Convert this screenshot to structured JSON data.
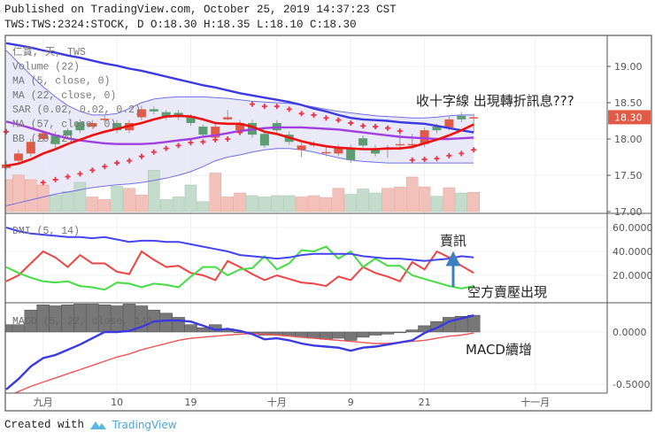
{
  "header": {
    "published": "Published on TradingView.com, October 25, 2019 14:37:23 CST",
    "symbol_line": "TWS:TWS:2324:STOCK, D O:18.30 H:18.35 L:18.10 C:18.30"
  },
  "footer": {
    "created_with": "Created with",
    "brand": "TradingView",
    "brand_icon": "tradingview-logo-icon"
  },
  "colors": {
    "up": "#e05a45",
    "down": "#5a9e72",
    "ma5": "#ee1111",
    "ma22": "#a040e0",
    "ma57": "#3a3ae0",
    "bb": "#7070e8",
    "sar": "#ee3344",
    "dmi_plus": "#ee4444",
    "dmi_minus": "#44dd44",
    "adx": "#4444ee",
    "macd": "#3a3ae0",
    "signal": "#ee5555",
    "hist": "#777777",
    "last_price_bg": "#e05a45"
  },
  "chart_data": [
    {
      "type": "candlestick",
      "pane": "price",
      "legend": [
        "仁寶, 天, TWS",
        "Volume (22)",
        "MA (5, close, 0)",
        "MA (22, close, 0)",
        "SAR (0.02, 0.02, 0.2)",
        "MA (57, close, 0)",
        "BB (20, 2)"
      ],
      "yticks": [
        "19.00",
        "18.50",
        "18.00",
        "17.50",
        "17.00"
      ],
      "ylim": [
        16.98,
        19.4
      ],
      "last_price": "18.30",
      "x_ticks": [
        {
          "x": 3,
          "label": "九月"
        },
        {
          "x": 9,
          "label": "10"
        },
        {
          "x": 15,
          "label": "19"
        },
        {
          "x": 22,
          "label": "十月"
        },
        {
          "x": 28,
          "label": "9"
        },
        {
          "x": 34,
          "label": "21"
        },
        {
          "x": 43,
          "label": "十一月"
        }
      ],
      "open": [
        17.6,
        17.7,
        17.8,
        18.0,
        18.06,
        18.12,
        18.23,
        18.17,
        18.28,
        18.22,
        18.12,
        18.3,
        18.41,
        18.37,
        18.36,
        18.3,
        18.17,
        18.02,
        18.27,
        18.12,
        18.22,
        18.07,
        18.22,
        18.06,
        17.85,
        17.93,
        17.82,
        17.8,
        17.87,
        18.01,
        17.87,
        17.87,
        17.93,
        17.93,
        17.93,
        18.17,
        18.16,
        18.32,
        18.3
      ],
      "close": [
        17.65,
        17.8,
        17.96,
        18.08,
        17.93,
        18.05,
        18.12,
        18.22,
        18.28,
        18.12,
        18.22,
        18.41,
        18.38,
        18.3,
        18.3,
        18.22,
        18.06,
        18.17,
        18.3,
        18.22,
        18.06,
        17.91,
        18.12,
        17.96,
        17.91,
        17.93,
        17.82,
        17.87,
        17.71,
        17.91,
        17.8,
        17.87,
        17.93,
        17.93,
        18.12,
        18.12,
        18.27,
        18.27,
        18.3
      ],
      "high": [
        17.7,
        17.85,
        18.0,
        18.12,
        18.1,
        18.15,
        18.27,
        18.26,
        18.32,
        18.26,
        18.26,
        18.46,
        18.45,
        18.4,
        18.4,
        18.34,
        18.2,
        18.21,
        18.4,
        18.26,
        18.26,
        18.1,
        18.26,
        18.1,
        17.95,
        17.97,
        17.9,
        17.92,
        17.92,
        18.05,
        17.92,
        17.92,
        18.07,
        18.07,
        18.16,
        18.21,
        18.31,
        18.37,
        18.35
      ],
      "low": [
        17.58,
        17.66,
        17.76,
        17.96,
        17.88,
        18.0,
        18.08,
        18.14,
        18.24,
        18.08,
        18.08,
        18.26,
        18.34,
        18.26,
        18.26,
        18.18,
        18.02,
        17.98,
        18.26,
        18.08,
        18.02,
        17.88,
        18.08,
        17.92,
        17.75,
        17.89,
        17.76,
        17.76,
        17.67,
        17.87,
        17.76,
        17.74,
        17.85,
        17.86,
        17.89,
        18.08,
        18.12,
        18.23,
        18.1
      ],
      "volume": [
        48,
        55,
        48,
        40,
        25,
        30,
        44,
        22,
        18,
        38,
        35,
        25,
        62,
        18,
        22,
        40,
        15,
        58,
        22,
        28,
        24,
        22,
        24,
        24,
        22,
        24,
        21,
        35,
        26,
        34,
        28,
        35,
        37,
        52,
        37,
        23,
        36,
        28,
        29
      ],
      "ma5": [
        17.63,
        17.66,
        17.72,
        17.8,
        17.86,
        17.93,
        17.99,
        18.05,
        18.1,
        18.14,
        18.18,
        18.22,
        18.27,
        18.31,
        18.32,
        18.31,
        18.27,
        18.22,
        18.21,
        18.21,
        18.17,
        18.1,
        18.07,
        18.02,
        17.97,
        17.93,
        17.9,
        17.88,
        17.87,
        17.86,
        17.86,
        17.87,
        17.87,
        17.89,
        17.94,
        17.99,
        18.05,
        18.12,
        18.2
      ],
      "ma22": [
        18.24,
        18.2,
        18.15,
        18.1,
        18.05,
        18.01,
        17.98,
        17.96,
        17.94,
        17.93,
        17.93,
        17.93,
        17.94,
        17.96,
        17.98,
        18.0,
        18.03,
        18.05,
        18.08,
        18.11,
        18.13,
        18.15,
        18.16,
        18.16,
        18.16,
        18.15,
        18.14,
        18.13,
        18.11,
        18.09,
        18.07,
        18.05,
        18.03,
        18.02,
        18.01,
        18.0,
        18.0,
        18.01,
        18.02
      ],
      "ma57": [
        19.32,
        19.29,
        19.26,
        19.22,
        19.19,
        19.15,
        19.12,
        19.08,
        19.04,
        19.01,
        18.97,
        18.94,
        18.9,
        18.86,
        18.82,
        18.78,
        18.74,
        18.71,
        18.67,
        18.63,
        18.6,
        18.57,
        18.54,
        18.51,
        18.47,
        18.42,
        18.38,
        18.33,
        18.29,
        18.27,
        18.26,
        18.25,
        18.23,
        18.22,
        18.21,
        18.18,
        18.15,
        18.12,
        18.09
      ],
      "bb_upper": [
        19.22,
        19.05,
        18.88,
        18.72,
        18.58,
        18.46,
        18.38,
        18.33,
        18.33,
        18.35,
        18.42,
        18.5,
        18.55,
        18.57,
        18.58,
        18.58,
        18.58,
        18.57,
        18.56,
        18.54,
        18.52,
        18.51,
        18.5,
        18.49,
        18.47,
        18.44,
        18.41,
        18.38,
        18.36,
        18.34,
        18.32,
        18.31,
        18.3,
        18.29,
        18.29,
        18.3,
        18.32,
        18.33,
        18.33
      ],
      "bb_lower": [
        17.08,
        17.12,
        17.16,
        17.2,
        17.24,
        17.27,
        17.3,
        17.33,
        17.35,
        17.37,
        17.38,
        17.4,
        17.43,
        17.46,
        17.5,
        17.55,
        17.62,
        17.7,
        17.75,
        17.78,
        17.82,
        17.85,
        17.87,
        17.87,
        17.85,
        17.82,
        17.78,
        17.74,
        17.71,
        17.69,
        17.68,
        17.67,
        17.67,
        17.67,
        17.67,
        17.67,
        17.67,
        17.67,
        17.67
      ],
      "sar": [
        18.1,
        null,
        null,
        17.4,
        17.44,
        17.48,
        17.52,
        17.57,
        17.62,
        17.67,
        17.7,
        17.76,
        17.82,
        17.87,
        17.91,
        17.95,
        17.96,
        17.99,
        18.0,
        18.09,
        18.48,
        18.45,
        18.45,
        18.41,
        18.35,
        18.33,
        18.29,
        18.26,
        18.22,
        18.18,
        18.17,
        18.15,
        18.11,
        17.71,
        17.72,
        17.73,
        17.77,
        17.8,
        17.85
      ],
      "annotation": "收十字線 出現轉折訊息???"
    },
    {
      "type": "line",
      "pane": "dmi",
      "legend": "DMI (5, 14)",
      "yticks": [
        "60.0000",
        "40.0000",
        "20.0000"
      ],
      "ylim": [
        0,
        62
      ],
      "series": [
        {
          "values": [
            15,
            20,
            30,
            40,
            35,
            27,
            37,
            30,
            30,
            23,
            21,
            40,
            33,
            27,
            28,
            22,
            20,
            16,
            32,
            27,
            21,
            16,
            20,
            17,
            14,
            13,
            11,
            19,
            16,
            27,
            22,
            19,
            15,
            31,
            25,
            40,
            35,
            28,
            22
          ]
        },
        {
          "values": [
            27,
            22,
            18,
            15,
            14,
            15,
            11,
            10,
            8,
            14,
            13,
            10,
            13,
            12,
            10,
            19,
            27,
            27,
            20,
            25,
            26,
            36,
            25,
            30,
            41,
            40,
            44,
            34,
            40,
            27,
            34,
            28,
            28,
            20,
            17,
            14,
            11,
            9,
            11
          ]
        },
        {
          "values": [
            60,
            57,
            55,
            54,
            53,
            52,
            52,
            51,
            52,
            50,
            48,
            49,
            49,
            48,
            48,
            46,
            44,
            42,
            40,
            37,
            36,
            35,
            34,
            35,
            37,
            38,
            38,
            38,
            38,
            36,
            35,
            34,
            34,
            33,
            32,
            33,
            34,
            36,
            35
          ]
        }
      ],
      "annotations": [
        "賣訊",
        "空方賣壓出現"
      ]
    },
    {
      "type": "bar+line",
      "pane": "macd",
      "legend": "MACD (5, 22, close, 14)",
      "yticks": [
        "0.0000",
        "-0.5000"
      ],
      "ylim": [
        -0.6,
        0.27
      ],
      "histogram": [
        0.07,
        0.07,
        0.21,
        0.26,
        0.25,
        0.26,
        0.27,
        0.27,
        0.26,
        0.25,
        0.27,
        0.25,
        0.21,
        0.18,
        0.14,
        0.07,
        0.04,
        0.07,
        0.03,
        0.0,
        -0.01,
        -0.03,
        -0.03,
        -0.04,
        -0.05,
        -0.06,
        -0.07,
        -0.06,
        -0.08,
        -0.05,
        -0.03,
        -0.02,
        0.0,
        0.02,
        0.06,
        0.1,
        0.14,
        0.15,
        0.16
      ],
      "macd": [
        -0.55,
        -0.45,
        -0.33,
        -0.25,
        -0.22,
        -0.17,
        -0.12,
        -0.06,
        0.0,
        0.0,
        0.01,
        0.05,
        0.1,
        0.11,
        0.11,
        0.1,
        0.06,
        0.02,
        0.03,
        0.01,
        -0.02,
        -0.07,
        -0.06,
        -0.08,
        -0.11,
        -0.13,
        -0.14,
        -0.15,
        -0.18,
        -0.15,
        -0.14,
        -0.12,
        -0.1,
        -0.08,
        -0.01,
        0.04,
        0.1,
        0.13,
        0.16
      ],
      "signal": [
        -0.62,
        -0.57,
        -0.52,
        -0.48,
        -0.44,
        -0.4,
        -0.36,
        -0.32,
        -0.28,
        -0.24,
        -0.21,
        -0.17,
        -0.14,
        -0.11,
        -0.08,
        -0.06,
        -0.05,
        -0.04,
        -0.03,
        -0.02,
        -0.015,
        -0.02,
        -0.03,
        -0.04,
        -0.05,
        -0.06,
        -0.07,
        -0.08,
        -0.09,
        -0.1,
        -0.11,
        -0.11,
        -0.1,
        -0.09,
        -0.08,
        -0.06,
        -0.04,
        -0.03,
        -0.01
      ],
      "annotation": "MACD續增"
    }
  ]
}
